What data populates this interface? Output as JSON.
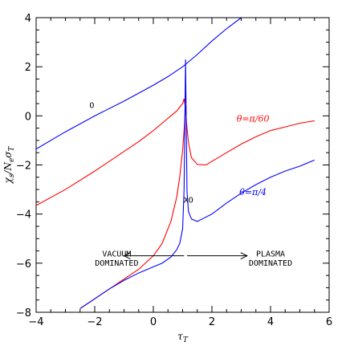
{
  "chart_data": {
    "type": "line",
    "xlabel": "τT",
    "ylabel": "χs/NeσT",
    "xlim": [
      -4,
      6
    ],
    "ylim": [
      -8,
      4
    ],
    "xticks": [
      -4,
      -2,
      0,
      2,
      4,
      6
    ],
    "yticks": [
      -8,
      -6,
      -4,
      -2,
      0,
      2,
      4
    ],
    "grid": false,
    "series": [
      {
        "name": "O",
        "color": "#0000ff",
        "x": [
          -4,
          -3,
          -2,
          -1,
          0,
          0.5,
          1,
          1.1,
          1.5,
          2,
          2.5,
          3
        ],
        "y": [
          -1.35,
          -0.65,
          0.0,
          0.6,
          1.25,
          1.6,
          2.0,
          2.1,
          2.5,
          3.05,
          3.55,
          4.0
        ]
      },
      {
        "name": "θ=π/60",
        "color": "#ff0000",
        "x": [
          -4,
          -3,
          -2,
          -1,
          -0.5,
          0,
          0.3,
          0.6,
          0.8,
          0.9,
          1.0,
          1.05,
          1.1,
          1.15,
          1.2,
          1.3,
          1.5,
          1.8,
          2.0,
          2.5,
          3,
          3.5,
          4,
          4.5,
          5,
          5.5
        ],
        "y": [
          -3.65,
          -3.0,
          -2.25,
          -1.45,
          -1.05,
          -0.6,
          -0.3,
          0.0,
          0.2,
          0.35,
          0.5,
          0.7,
          0.3,
          -0.5,
          -1.1,
          -1.7,
          -1.98,
          -2.0,
          -1.85,
          -1.5,
          -1.15,
          -0.85,
          -0.6,
          -0.45,
          -0.3,
          -0.2
        ]
      },
      {
        "name": "θ=π/60 lower",
        "color": "#ff0000",
        "x": [
          -2.5,
          -2,
          -1.5,
          -1,
          -0.5,
          0,
          0.3,
          0.6,
          0.8,
          0.9,
          1.0,
          1.05,
          1.1
        ],
        "y": [
          -7.85,
          -7.45,
          -7.05,
          -6.65,
          -6.25,
          -5.7,
          -5.2,
          -4.3,
          -3.3,
          -2.5,
          -1.4,
          -0.6,
          0.4
        ]
      },
      {
        "name": "θ=π/4",
        "color": "#0000ff",
        "x": [
          -2.5,
          -2,
          -1.5,
          -1,
          -0.5,
          0,
          0.3,
          0.6,
          0.8,
          0.9,
          1.0,
          1.05,
          1.1,
          1.15,
          1.2,
          1.3,
          1.5,
          2.0,
          2.5,
          3,
          3.5,
          4,
          4.5,
          5,
          5.5
        ],
        "y": [
          -7.85,
          -7.45,
          -7.05,
          -6.7,
          -6.4,
          -6.15,
          -6.0,
          -5.75,
          -5.45,
          -5.2,
          -4.6,
          -3.0,
          2.3,
          -3.1,
          -3.9,
          -4.2,
          -4.3,
          -4.0,
          -3.55,
          -3.15,
          -2.8,
          -2.5,
          -2.25,
          -2.05,
          -1.8
        ]
      }
    ],
    "annotations": [
      {
        "text": "O",
        "x": -2.1,
        "y": 0.45,
        "color": "#000000"
      },
      {
        "text": "θ=π/60",
        "x": 3.4,
        "y": -0.1,
        "color": "#ff0000"
      },
      {
        "text": "θ=π/4",
        "x": 3.4,
        "y": -3.1,
        "color": "#0000ff"
      },
      {
        "text": "XO",
        "x": 1.2,
        "y": -3.4,
        "color": "#000000"
      },
      {
        "text": "VACUUM",
        "x": -1.25,
        "y": -5.6,
        "color": "#000000"
      },
      {
        "text": "DOMINATED",
        "x": -1.25,
        "y": -5.98,
        "color": "#000000"
      },
      {
        "text": "PLASMA",
        "x": 4.0,
        "y": -5.6,
        "color": "#000000"
      },
      {
        "text": "DOMINATED",
        "x": 4.0,
        "y": -5.98,
        "color": "#000000"
      }
    ],
    "arrows": [
      {
        "from": [
          1.05,
          -5.7
        ],
        "to": [
          -1.0,
          -5.7
        ]
      },
      {
        "from": [
          1.15,
          -5.7
        ],
        "to": [
          3.2,
          -5.7
        ]
      }
    ]
  }
}
